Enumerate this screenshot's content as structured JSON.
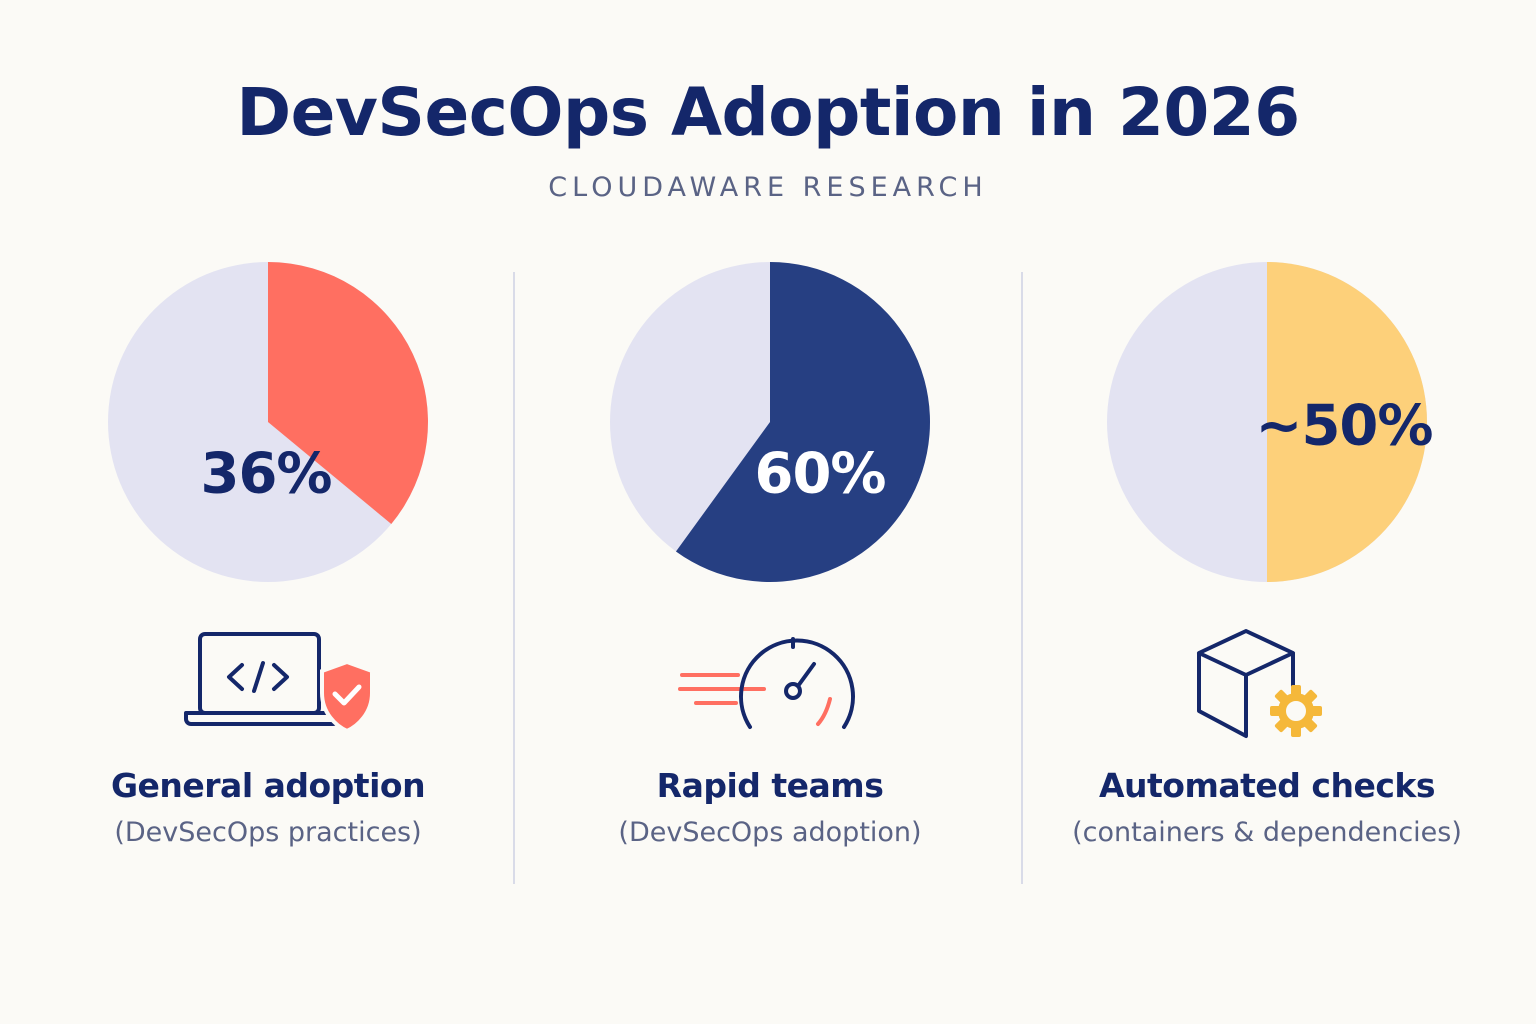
{
  "title": "DevSecOps Adoption in 2026",
  "subtitle": "CLOUDAWARE RESEARCH",
  "colors": {
    "navy": "#14276a",
    "coral": "#ff6f61",
    "blue": "#263f82",
    "yellow": "#fdd07a",
    "remainder": "#e3e3f2",
    "orange": "#f5b83a"
  },
  "chart_data": [
    {
      "type": "pie",
      "value_percent": 36,
      "value_label": "36%",
      "label": "General adoption",
      "sublabel": "(DevSecOps practices)",
      "icon": "laptop-code-shield-icon",
      "color": "#ff6f61",
      "remainder_color": "#e3e3f2",
      "value_label_color": "#14276a"
    },
    {
      "type": "pie",
      "value_percent": 60,
      "value_label": "60%",
      "label": "Rapid teams",
      "sublabel": "(DevSecOps adoption)",
      "icon": "speedometer-icon",
      "color": "#263f82",
      "remainder_color": "#e3e3f2",
      "value_label_color": "#ffffff"
    },
    {
      "type": "pie",
      "value_percent": 50,
      "value_label": "~50%",
      "label": "Automated checks",
      "sublabel": "(containers & dependencies)",
      "icon": "box-gear-icon",
      "color": "#fdd07a",
      "remainder_color": "#e3e3f2",
      "value_label_color": "#14276a"
    }
  ]
}
